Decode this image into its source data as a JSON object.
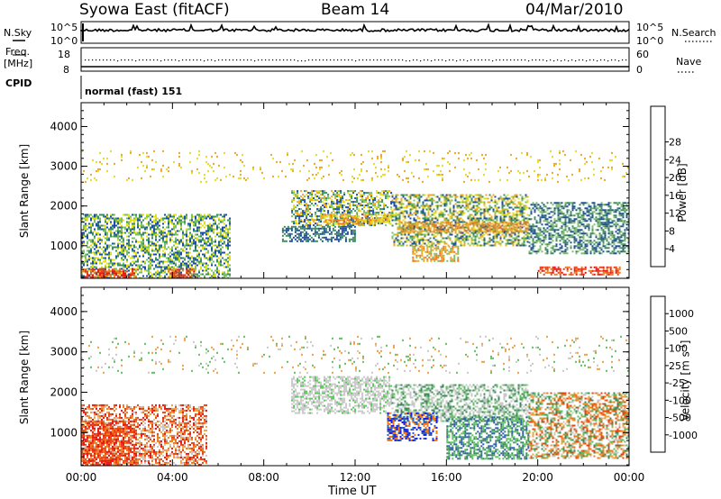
{
  "header": {
    "left": "Syowa East (fitACF)",
    "center": "Beam 14",
    "right": "04/Mar/2010"
  },
  "top_panels": {
    "nsky_label": "N.Sky",
    "nsearch_label": "N.Search",
    "nsky_ticks": [
      "10^5",
      "10^0"
    ],
    "nsearch_ticks": [
      "10^5",
      "10^0"
    ],
    "freq_label_1": "Freq.",
    "freq_label_2": "[MHz]",
    "freq_ticks": [
      "18",
      "8"
    ],
    "nave_label": "Nave",
    "nave_ticks": [
      "60",
      "0"
    ],
    "cpid_label": "CPID",
    "cpid_text": "normal (fast) 151"
  },
  "chart_data": [
    {
      "type": "heatmap",
      "name": "power",
      "ylabel": "Slant Range [km]",
      "xlabel": "",
      "x_ticks": [
        "00:00",
        "04:00",
        "08:00",
        "12:00",
        "16:00",
        "20:00",
        "00:00"
      ],
      "x_range_hours": [
        0,
        24
      ],
      "y_ticks": [
        1000,
        2000,
        3000,
        4000
      ],
      "ylim": [
        180,
        4600
      ],
      "colorbar": {
        "label": "Power [dB]",
        "ticks": [
          "4",
          "8",
          "12",
          "16",
          "20",
          "24",
          "28"
        ],
        "colors": [
          "#1f10f0",
          "#1e4ba8",
          "#3c8d5e",
          "#7dbf63",
          "#e0e020",
          "#f0a820",
          "#f07818",
          "#f03a10",
          "#f01010"
        ]
      },
      "regions": [
        {
          "t": [
            0.0,
            6.5
          ],
          "r": [
            200,
            1800
          ],
          "c": [
            1,
            2,
            3,
            4
          ]
        },
        {
          "t": [
            0.0,
            2.5
          ],
          "r": [
            220,
            420
          ],
          "c": [
            6,
            7,
            8
          ]
        },
        {
          "t": [
            3.8,
            5.0
          ],
          "r": [
            220,
            420
          ],
          "c": [
            6,
            7,
            8
          ]
        },
        {
          "t": [
            9.2,
            13.6
          ],
          "r": [
            1500,
            2400
          ],
          "c": [
            1,
            2,
            3,
            4,
            5
          ]
        },
        {
          "t": [
            10.6,
            13.6
          ],
          "r": [
            1550,
            1800
          ],
          "c": [
            4,
            5,
            6
          ]
        },
        {
          "t": [
            13.6,
            19.6
          ],
          "r": [
            1000,
            2300
          ],
          "c": [
            1,
            2,
            3,
            4,
            5
          ]
        },
        {
          "t": [
            14.0,
            19.6
          ],
          "r": [
            1350,
            1600
          ],
          "c": [
            5,
            6
          ]
        },
        {
          "t": [
            14.5,
            16.5
          ],
          "r": [
            600,
            1000
          ],
          "c": [
            3,
            5,
            6
          ]
        },
        {
          "t": [
            19.6,
            24.0
          ],
          "r": [
            800,
            2100
          ],
          "c": [
            1,
            2,
            3
          ]
        },
        {
          "t": [
            20.0,
            23.6
          ],
          "r": [
            260,
            480
          ],
          "c": [
            6,
            7,
            8
          ]
        },
        {
          "t": [
            8.8,
            12.0
          ],
          "r": [
            1100,
            1500
          ],
          "c": [
            1,
            2
          ]
        },
        {
          "t": [
            0.0,
            24.0
          ],
          "r": [
            2600,
            3400
          ],
          "c": [
            4,
            5
          ]
        }
      ]
    },
    {
      "type": "heatmap",
      "name": "velocity",
      "ylabel": "Slant Range [km]",
      "xlabel": "Time UT",
      "x_ticks": [
        "00:00",
        "04:00",
        "08:00",
        "12:00",
        "16:00",
        "20:00",
        "00:00"
      ],
      "x_range_hours": [
        0,
        24
      ],
      "y_ticks": [
        1000,
        2000,
        3000,
        4000
      ],
      "ylim": [
        180,
        4600
      ],
      "colorbar": {
        "label": "Velocity [m s",
        "label_sup": "-1",
        "label_end": "]",
        "ticks": [
          "1000",
          "500",
          "100",
          "25",
          "-25",
          "-100",
          "-500",
          "-1000"
        ],
        "colors": [
          "#1818d8",
          "#2b5ba8",
          "#3c8a5e",
          "#5ec060",
          "#c8c8c8",
          "#f0a040",
          "#f07818",
          "#f04010",
          "#f01010"
        ]
      },
      "regions": [
        {
          "t": [
            0.0,
            5.5
          ],
          "r": [
            200,
            1700
          ],
          "c": [
            5,
            6,
            7,
            8,
            4
          ]
        },
        {
          "t": [
            0.0,
            2.4
          ],
          "r": [
            220,
            1300
          ],
          "c": [
            6,
            7,
            8
          ]
        },
        {
          "t": [
            9.2,
            13.6
          ],
          "r": [
            1500,
            2400
          ],
          "c": [
            4,
            4,
            4,
            3
          ]
        },
        {
          "t": [
            13.6,
            19.6
          ],
          "r": [
            1300,
            2200
          ],
          "c": [
            4,
            4,
            3,
            2
          ]
        },
        {
          "t": [
            13.4,
            15.6
          ],
          "r": [
            800,
            1500
          ],
          "c": [
            0,
            1,
            6
          ]
        },
        {
          "t": [
            16.0,
            19.6
          ],
          "r": [
            350,
            1400
          ],
          "c": [
            2,
            3,
            1
          ]
        },
        {
          "t": [
            19.6,
            24.0
          ],
          "r": [
            350,
            2000
          ],
          "c": [
            4,
            5,
            6,
            7,
            2,
            3
          ]
        },
        {
          "t": [
            0.0,
            24.0
          ],
          "r": [
            2500,
            3400
          ],
          "c": [
            3,
            4,
            5
          ]
        }
      ]
    }
  ]
}
